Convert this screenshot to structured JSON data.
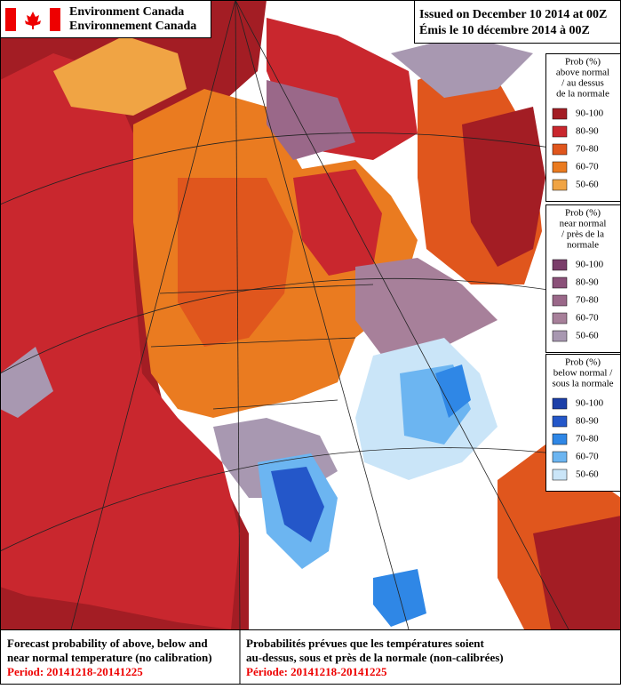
{
  "header": {
    "agency_en": "Environment Canada",
    "agency_fr": "Environnement Canada",
    "issued_en": "Issued on December 10 2014 at 00Z",
    "issued_fr": "Émis le 10 décembre 2014 à 00Z"
  },
  "legends": [
    {
      "title": [
        "Prob (%)",
        "above normal",
        "/ au dessus",
        "de la normale"
      ],
      "items": [
        {
          "label": "90-100",
          "color": "#a31d24"
        },
        {
          "label": "80-90",
          "color": "#c9272e"
        },
        {
          "label": "70-80",
          "color": "#e0561d"
        },
        {
          "label": "60-70",
          "color": "#ea7b20"
        },
        {
          "label": "50-60",
          "color": "#f0a444"
        }
      ]
    },
    {
      "title": [
        "Prob (%)",
        "near normal",
        "/ près de la",
        "normale"
      ],
      "items": [
        {
          "label": "90-100",
          "color": "#7a3d6a"
        },
        {
          "label": "80-90",
          "color": "#8b5179"
        },
        {
          "label": "70-80",
          "color": "#9a6889"
        },
        {
          "label": "60-70",
          "color": "#a7809a"
        },
        {
          "label": "50-60",
          "color": "#a898b1"
        }
      ]
    },
    {
      "title": [
        "Prob (%)",
        "below normal /",
        "sous la normale"
      ],
      "items": [
        {
          "label": "90-100",
          "color": "#1c3fa8"
        },
        {
          "label": "80-90",
          "color": "#2457c9"
        },
        {
          "label": "70-80",
          "color": "#2f87e6"
        },
        {
          "label": "60-70",
          "color": "#6cb5f1"
        },
        {
          "label": "50-60",
          "color": "#cae5f8"
        }
      ]
    }
  ],
  "footer": {
    "en": [
      "Forecast probability of above, below and",
      "near normal temperature (no calibration)"
    ],
    "period_en": "Period: 20141218-20141225",
    "fr": [
      "Probabilités prévues que les températures soient",
      "au-dessus, sous et près de la normale (non-calibrées)"
    ],
    "period_fr": "Période: 20141218-20141225"
  }
}
